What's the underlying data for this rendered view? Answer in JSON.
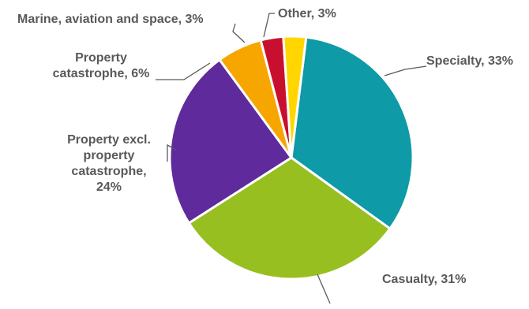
{
  "chart_data": {
    "type": "pie",
    "title": "",
    "slices": [
      {
        "label": "Specialty, 33%",
        "name": "Specialty",
        "value": 33,
        "color": "#0E9AA7"
      },
      {
        "label": "Casualty, 31%",
        "name": "Casualty",
        "value": 31,
        "color": "#97BF20"
      },
      {
        "label": "Property excl. property catastrophe, 24%",
        "name": "Property excl. property catastrophe",
        "value": 24,
        "color": "#5E2A9C"
      },
      {
        "label": "Property catastrophe, 6%",
        "name": "Property catastrophe",
        "value": 6,
        "color": "#F7A600"
      },
      {
        "label": "Marine, aviation and space, 3%",
        "name": "Marine, aviation and space",
        "value": 3,
        "color": "#C8102E"
      },
      {
        "label": "Other, 3%",
        "name": "Other",
        "value": 3,
        "color": "#FFD600"
      }
    ],
    "label_lines": {
      "Specialty": [
        "Specialty, 33%"
      ],
      "Casualty": [
        "Casualty, 31%"
      ],
      "Property excl. property catastrophe": [
        "Property excl.",
        "property",
        "catastrophe,",
        "24%"
      ],
      "Property catastrophe": [
        "Property",
        "catastrophe, 6%"
      ],
      "Marine, aviation and space": [
        "Marine, aviation and space, 3%"
      ],
      "Other": [
        "Other, 3%"
      ]
    },
    "legend": "none",
    "style": {
      "label_color": "#595959",
      "leader_color": "#595959",
      "slice_border": "#ffffff"
    }
  }
}
